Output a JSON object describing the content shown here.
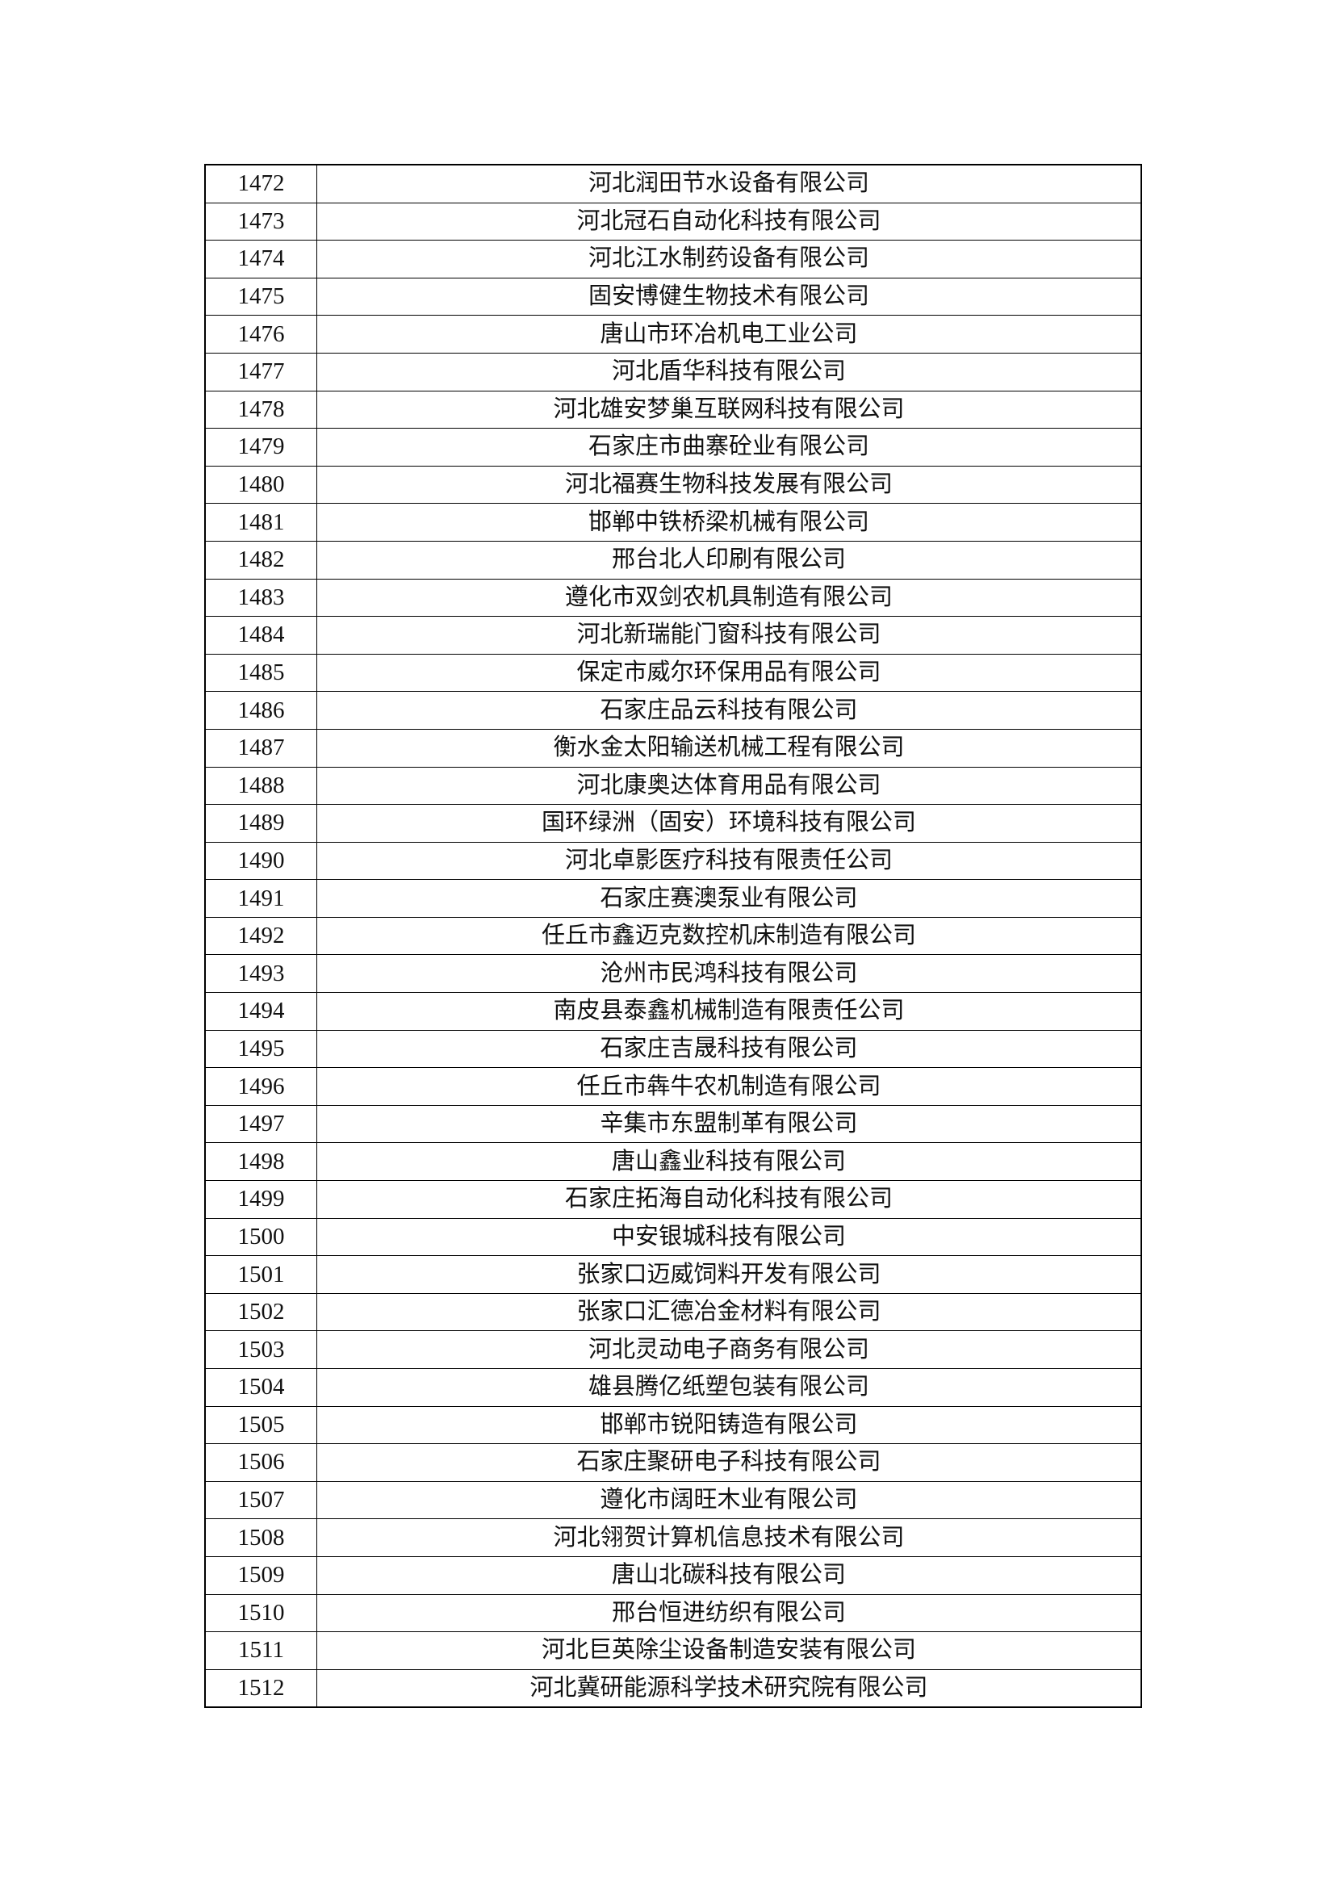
{
  "rows": [
    {
      "no": "1472",
      "name": "河北润田节水设备有限公司"
    },
    {
      "no": "1473",
      "name": "河北冠石自动化科技有限公司"
    },
    {
      "no": "1474",
      "name": "河北江水制药设备有限公司"
    },
    {
      "no": "1475",
      "name": "固安博健生物技术有限公司"
    },
    {
      "no": "1476",
      "name": "唐山市环冶机电工业公司"
    },
    {
      "no": "1477",
      "name": "河北盾华科技有限公司"
    },
    {
      "no": "1478",
      "name": "河北雄安梦巢互联网科技有限公司"
    },
    {
      "no": "1479",
      "name": "石家庄市曲寨砼业有限公司"
    },
    {
      "no": "1480",
      "name": "河北福赛生物科技发展有限公司"
    },
    {
      "no": "1481",
      "name": "邯郸中铁桥梁机械有限公司"
    },
    {
      "no": "1482",
      "name": "邢台北人印刷有限公司"
    },
    {
      "no": "1483",
      "name": "遵化市双剑农机具制造有限公司"
    },
    {
      "no": "1484",
      "name": "河北新瑞能门窗科技有限公司"
    },
    {
      "no": "1485",
      "name": "保定市威尔环保用品有限公司"
    },
    {
      "no": "1486",
      "name": "石家庄品云科技有限公司"
    },
    {
      "no": "1487",
      "name": "衡水金太阳输送机械工程有限公司"
    },
    {
      "no": "1488",
      "name": "河北康奥达体育用品有限公司"
    },
    {
      "no": "1489",
      "name": "国环绿洲（固安）环境科技有限公司"
    },
    {
      "no": "1490",
      "name": "河北卓影医疗科技有限责任公司"
    },
    {
      "no": "1491",
      "name": "石家庄赛澳泵业有限公司"
    },
    {
      "no": "1492",
      "name": "任丘市鑫迈克数控机床制造有限公司"
    },
    {
      "no": "1493",
      "name": "沧州市民鸿科技有限公司"
    },
    {
      "no": "1494",
      "name": "南皮县泰鑫机械制造有限责任公司"
    },
    {
      "no": "1495",
      "name": "石家庄吉晟科技有限公司"
    },
    {
      "no": "1496",
      "name": "任丘市犇牛农机制造有限公司"
    },
    {
      "no": "1497",
      "name": "辛集市东盟制革有限公司"
    },
    {
      "no": "1498",
      "name": "唐山鑫业科技有限公司"
    },
    {
      "no": "1499",
      "name": "石家庄拓海自动化科技有限公司"
    },
    {
      "no": "1500",
      "name": "中安银城科技有限公司"
    },
    {
      "no": "1501",
      "name": "张家口迈威饲料开发有限公司"
    },
    {
      "no": "1502",
      "name": "张家口汇德冶金材料有限公司"
    },
    {
      "no": "1503",
      "name": "河北灵动电子商务有限公司"
    },
    {
      "no": "1504",
      "name": "雄县腾亿纸塑包装有限公司"
    },
    {
      "no": "1505",
      "name": "邯郸市锐阳铸造有限公司"
    },
    {
      "no": "1506",
      "name": "石家庄聚研电子科技有限公司"
    },
    {
      "no": "1507",
      "name": "遵化市阔旺木业有限公司"
    },
    {
      "no": "1508",
      "name": "河北翎贺计算机信息技术有限公司"
    },
    {
      "no": "1509",
      "name": "唐山北碳科技有限公司"
    },
    {
      "no": "1510",
      "name": "邢台恒进纺织有限公司"
    },
    {
      "no": "1511",
      "name": "河北巨英除尘设备制造安装有限公司"
    },
    {
      "no": "1512",
      "name": "河北冀研能源科学技术研究院有限公司"
    }
  ]
}
